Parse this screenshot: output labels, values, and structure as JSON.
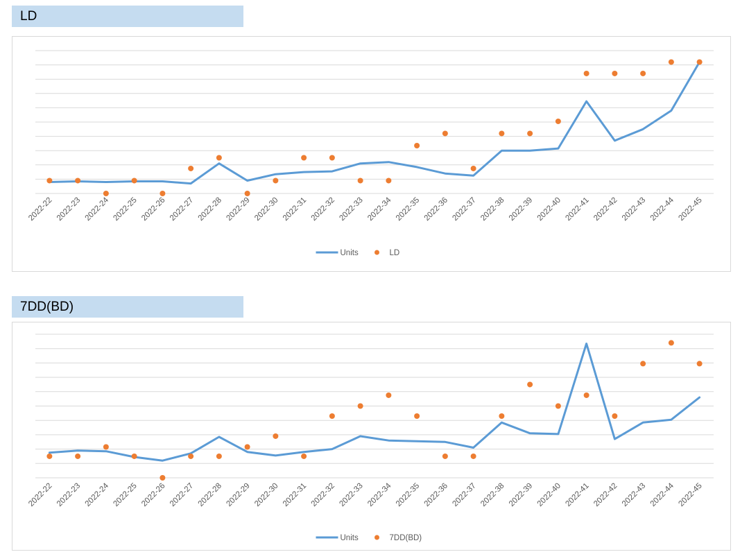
{
  "colors": {
    "line": "#5b9bd5",
    "dot": "#ed7d31",
    "grid": "#d9d9d9",
    "header_bg": "#c5dcf0"
  },
  "sections": [
    {
      "title": "LD"
    },
    {
      "title": "7DD(BD)"
    }
  ],
  "chart_data": [
    {
      "type": "line",
      "title": "",
      "xlabel": "",
      "ylabel": "",
      "ylim": [
        0,
        10
      ],
      "grid": true,
      "legend_position": "bottom",
      "categories": [
        "2022-22",
        "2022-23",
        "2022-24",
        "2022-25",
        "2022-26",
        "2022-27",
        "2022-28",
        "2022-29",
        "2022-30",
        "2022-31",
        "2022-32",
        "2022-33",
        "2022-34",
        "2022-35",
        "2022-36",
        "2022-37",
        "2022-38",
        "2022-39",
        "2022-40",
        "2022-41",
        "2022-42",
        "2022-43",
        "2022-44",
        "2022-45"
      ],
      "series": [
        {
          "name": "Units",
          "style": "line",
          "values": [
            0.8,
            0.85,
            0.8,
            0.85,
            0.85,
            0.7,
            2.1,
            0.9,
            1.35,
            1.5,
            1.55,
            2.1,
            2.2,
            1.85,
            1.4,
            1.25,
            3.0,
            3.0,
            3.15,
            6.45,
            3.7,
            4.5,
            5.8,
            9.2
          ]
        },
        {
          "name": "LD",
          "style": "scatter",
          "values": [
            0.9,
            0.9,
            0,
            0.9,
            0,
            1.75,
            2.5,
            0,
            0.9,
            2.5,
            2.5,
            0.9,
            0.9,
            3.35,
            4.2,
            1.75,
            4.2,
            4.2,
            5.05,
            8.4,
            8.4,
            8.4,
            9.2,
            9.2
          ]
        }
      ]
    },
    {
      "type": "line",
      "title": "",
      "xlabel": "",
      "ylabel": "",
      "ylim": [
        0,
        10
      ],
      "grid": true,
      "legend_position": "bottom",
      "categories": [
        "2022-22",
        "2022-23",
        "2022-24",
        "2022-25",
        "2022-26",
        "2022-27",
        "2022-28",
        "2022-29",
        "2022-30",
        "2022-31",
        "2022-32",
        "2022-33",
        "2022-34",
        "2022-35",
        "2022-36",
        "2022-37",
        "2022-38",
        "2022-39",
        "2022-40",
        "2022-41",
        "2022-42",
        "2022-43",
        "2022-44",
        "2022-45"
      ],
      "series": [
        {
          "name": "Units",
          "style": "line",
          "values": [
            1.75,
            1.9,
            1.85,
            1.45,
            1.2,
            1.7,
            2.85,
            1.8,
            1.55,
            1.8,
            2.0,
            2.9,
            2.6,
            2.55,
            2.5,
            2.1,
            3.85,
            3.1,
            3.05,
            9.35,
            2.7,
            3.85,
            4.05,
            5.6
          ]
        },
        {
          "name": "7DD(BD)",
          "style": "scatter",
          "values": [
            1.5,
            1.5,
            2.15,
            1.5,
            0,
            1.5,
            1.5,
            2.15,
            2.9,
            1.5,
            4.3,
            5.0,
            5.75,
            4.3,
            1.5,
            1.5,
            4.3,
            6.5,
            5.0,
            5.75,
            4.3,
            7.95,
            9.4,
            7.95
          ]
        }
      ]
    }
  ]
}
